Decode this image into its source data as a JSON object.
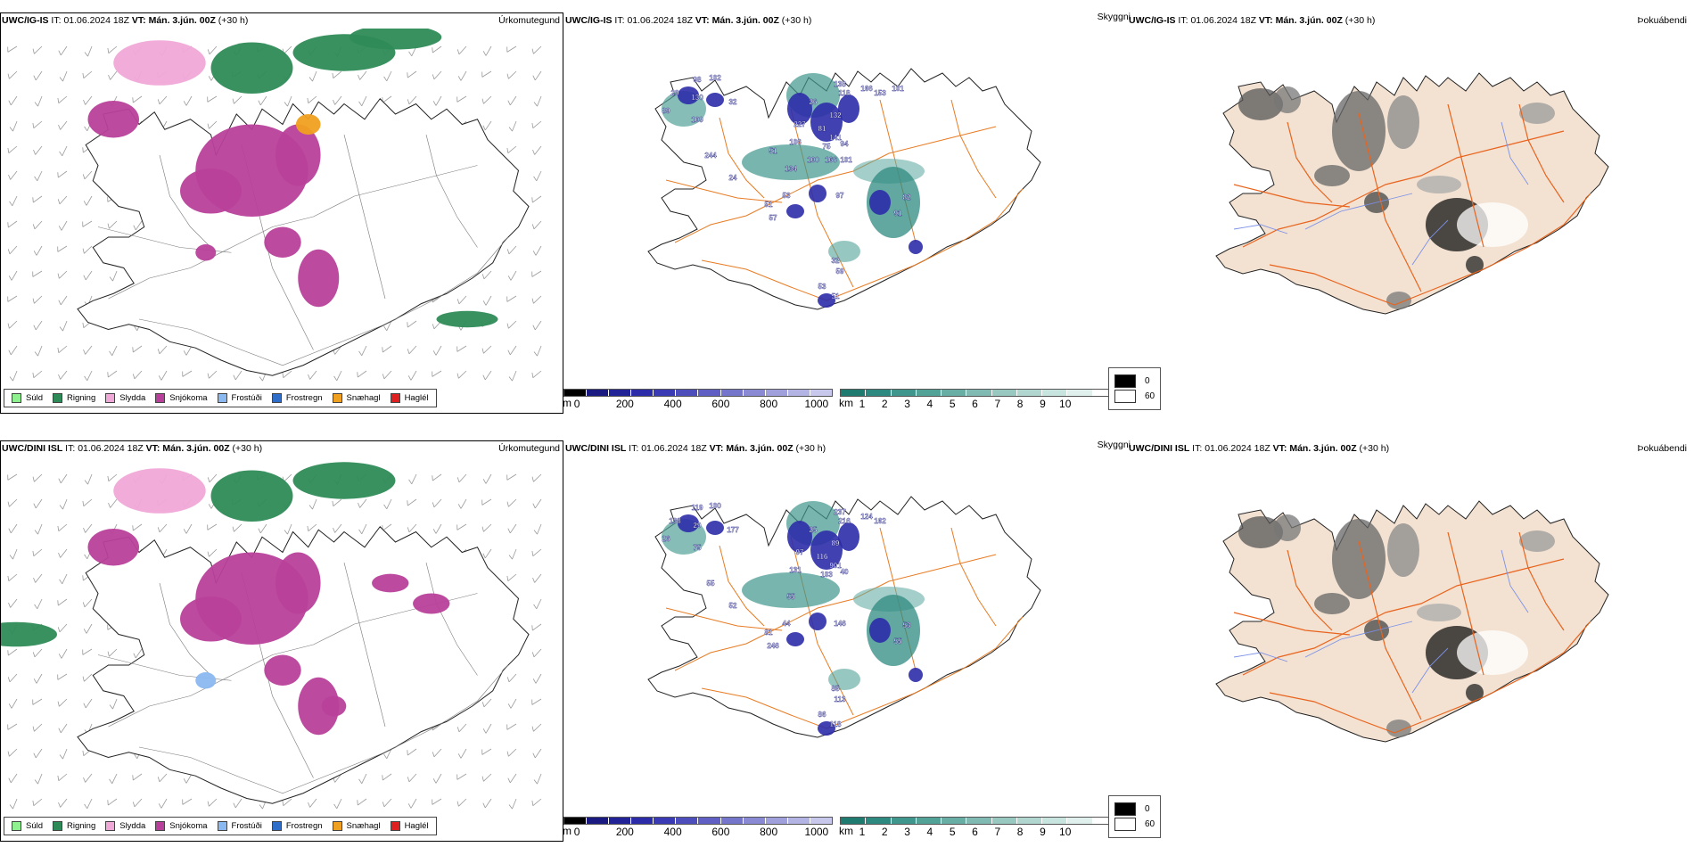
{
  "rows": [
    {
      "model": "UWC/IG-IS",
      "it_label": "IT:",
      "it_value": "01.06.2024 18Z",
      "vt_label": "VT:",
      "vt_value": "Mán. 3.jún. 00Z",
      "lead": "(+30 h)",
      "panels": [
        {
          "title": "Úrkomutegund",
          "labels": []
        },
        {
          "title": "Skyggni",
          "labels": [
            "98",
            "102",
            "29",
            "130",
            "32",
            "89",
            "109",
            "244",
            "24",
            "134",
            "53",
            "51",
            "57",
            "97",
            "82",
            "91",
            "32",
            "59",
            "53",
            "51",
            "138",
            "118",
            "166",
            "153",
            "26",
            "132",
            "227",
            "81",
            "141",
            "106",
            "75",
            "94",
            "100",
            "166",
            "101",
            "101",
            "51"
          ]
        },
        {
          "title": "Þokuábendi",
          "labels": []
        }
      ]
    },
    {
      "model": "UWC/DINI ISL",
      "it_label": "IT:",
      "it_value": "01.06.2024 18Z",
      "vt_label": "VT:",
      "vt_value": "Mán. 3.jún. 00Z",
      "lead": "(+30 h)",
      "panels": [
        {
          "title": "Úrkomutegund",
          "labels": []
        },
        {
          "title": "Skyggni",
          "labels": [
            "119",
            "100",
            "138",
            "29",
            "177",
            "26",
            "75",
            "55",
            "52",
            "55",
            "44",
            "81",
            "246",
            "146",
            "53",
            "55",
            "85",
            "113",
            "86",
            "118",
            "237",
            "216",
            "124",
            "162",
            "25",
            "89",
            "97",
            "116",
            "901",
            "131",
            "103",
            "40"
          ]
        },
        {
          "title": "Þokuábendi",
          "labels": []
        }
      ]
    }
  ],
  "ptype_legend": [
    {
      "label": "Súld",
      "color": "#8ef08e"
    },
    {
      "label": "Rigning",
      "color": "#2e8b57"
    },
    {
      "label": "Slydda",
      "color": "#f0a8d8"
    },
    {
      "label": "Snjókoma",
      "color": "#b8409a"
    },
    {
      "label": "Frostúði",
      "color": "#8ab8f0"
    },
    {
      "label": "Frostregn",
      "color": "#2e6ec8"
    },
    {
      "label": "Snæhagl",
      "color": "#f0a020"
    },
    {
      "label": "Haglél",
      "color": "#e02020"
    }
  ],
  "elevation_legend": {
    "unit": "m",
    "ticks": [
      "0",
      "200",
      "400",
      "600",
      "800",
      "1000"
    ],
    "colors": [
      "#000000",
      "#1a1a80",
      "#232398",
      "#2c2ca8",
      "#3a3ab4",
      "#4d4dbc",
      "#6060c4",
      "#7575cc",
      "#8a8ad4",
      "#a0a0dc",
      "#b4b4e4",
      "#c8c8ec"
    ]
  },
  "visibility_legend": {
    "unit": "km",
    "ticks": [
      "1",
      "2",
      "3",
      "4",
      "5",
      "6",
      "7",
      "8",
      "9",
      "10"
    ],
    "colors": [
      "#1f7a70",
      "#2e8a80",
      "#3f968c",
      "#52a298",
      "#68aea5",
      "#80bab2",
      "#98c8c0",
      "#b0d6cf",
      "#c8e4de",
      "#e0f0ec",
      "#ffffff"
    ]
  },
  "fog_legend": [
    {
      "label": "0",
      "color": "#000000"
    },
    {
      "label": "60",
      "color": "#ffffff"
    }
  ],
  "colors": {
    "ocean": "#ffffff",
    "land_fog": "#f3e2d2",
    "roads": "#e8641e",
    "roads_mid": "#e87c24",
    "rivers": "#7b90e8",
    "coast": "#000000"
  }
}
